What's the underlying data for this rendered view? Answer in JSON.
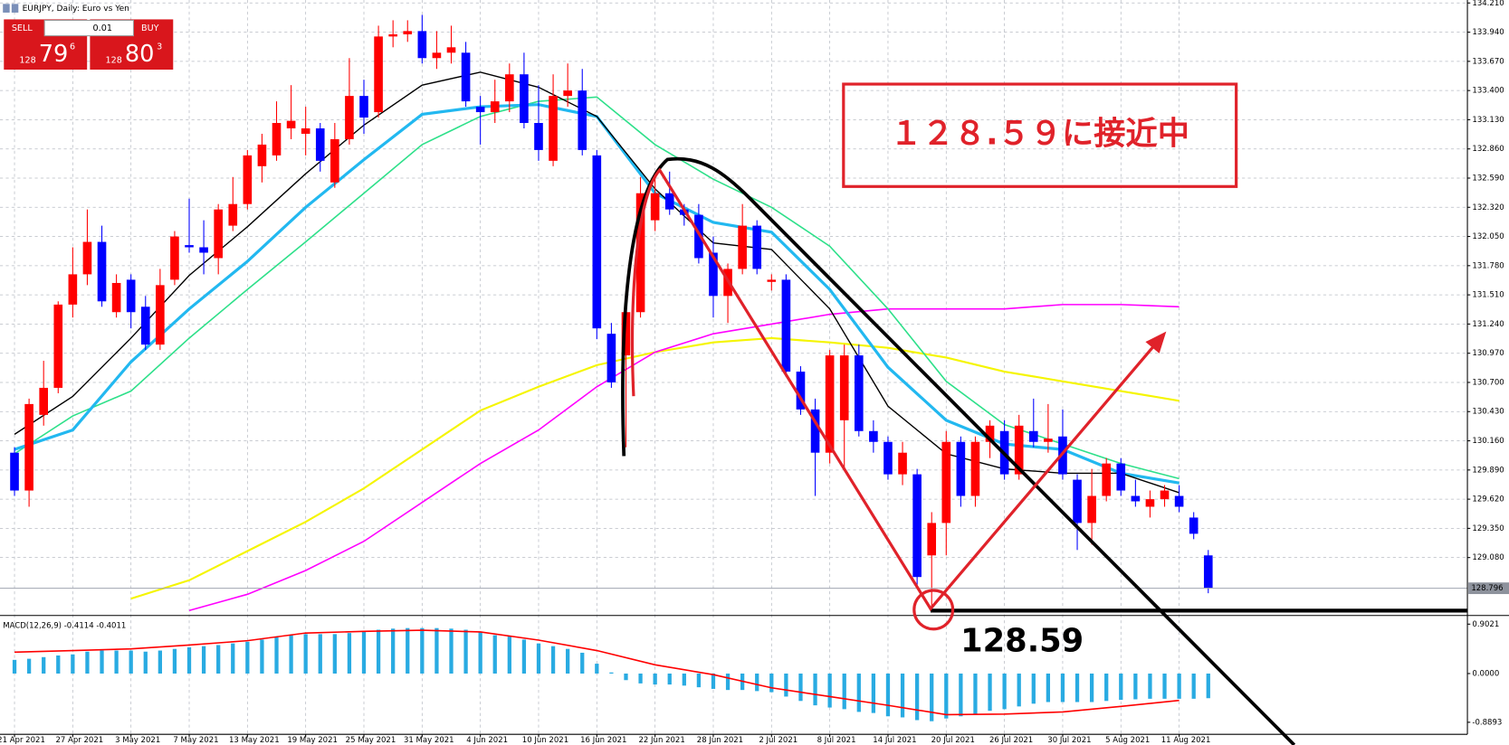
{
  "window_title": "EURJPY, Daily: Euro vs Yen",
  "trade_panel": {
    "sell": "SELL",
    "buy": "BUY",
    "lot": "0.01",
    "sell_big": "128",
    "sell_main": "79",
    "sell_sup": "6",
    "buy_big": "128",
    "buy_main": "80",
    "buy_sup": "3"
  },
  "annotations": {
    "box_text": "１２８.５９に接近中",
    "level_text": "128.59"
  },
  "chart_data": [
    {
      "type": "candlestick",
      "up_color": "#ff0000",
      "down_color": "#0000ff",
      "grid": true,
      "categories": [
        "21 Apr 2021",
        null,
        null,
        null,
        "27 Apr 2021",
        null,
        null,
        null,
        "3 May 2021",
        null,
        null,
        null,
        "7 May 2021",
        null,
        null,
        null,
        "13 May 2021",
        null,
        null,
        null,
        "19 May 2021",
        null,
        null,
        null,
        "25 May 2021",
        null,
        null,
        null,
        "31 May 2021",
        null,
        null,
        null,
        "4 Jun 2021",
        null,
        null,
        null,
        "10 Jun 2021",
        null,
        null,
        null,
        "16 Jun 2021",
        null,
        null,
        null,
        "22 Jun 2021",
        null,
        null,
        null,
        "28 Jun 2021",
        null,
        null,
        null,
        "2 Jul 2021",
        null,
        null,
        null,
        "8 Jul 2021",
        null,
        null,
        null,
        "14 Jul 2021",
        null,
        null,
        null,
        "20 Jul 2021",
        null,
        null,
        null,
        "26 Jul 2021",
        null,
        null,
        null,
        "30 Jul 2021",
        null,
        null,
        null,
        "5 Aug 2021",
        null,
        null,
        null,
        "11 Aug 2021",
        null,
        null
      ],
      "open": [
        130.05,
        129.7,
        130.4,
        130.65,
        131.42,
        131.7,
        132.0,
        131.35,
        131.65,
        131.4,
        131.05,
        131.65,
        131.97,
        131.95,
        131.85,
        132.15,
        132.35,
        132.7,
        132.8,
        133.05,
        133.0,
        133.05,
        132.55,
        132.95,
        133.35,
        133.2,
        133.9,
        133.92,
        133.95,
        133.7,
        133.75,
        133.75,
        133.25,
        133.2,
        133.3,
        133.55,
        133.1,
        132.75,
        133.35,
        133.4,
        132.8,
        131.15,
        130.95,
        131.35,
        132.2,
        132.45,
        132.3,
        132.25,
        131.9,
        131.5,
        131.75,
        132.15,
        131.63,
        131.65,
        130.8,
        130.45,
        130.05,
        130.35,
        130.95,
        130.25,
        130.15,
        129.85,
        129.85,
        129.1,
        129.4,
        130.15,
        129.65,
        130.15,
        130.25,
        129.85,
        130.25,
        130.15,
        130.2,
        129.8,
        129.4,
        129.65,
        129.95,
        129.65,
        129.55,
        129.62,
        129.65,
        129.45,
        129.1
      ],
      "high": [
        130.1,
        130.55,
        130.9,
        131.45,
        131.95,
        132.3,
        132.15,
        131.7,
        131.7,
        131.5,
        131.75,
        132.1,
        132.4,
        132.2,
        132.35,
        132.6,
        132.85,
        133.0,
        133.3,
        133.45,
        133.25,
        133.1,
        133.1,
        133.7,
        133.5,
        134.0,
        134.05,
        134.05,
        134.1,
        133.95,
        134.0,
        133.85,
        133.35,
        133.5,
        133.65,
        133.75,
        133.45,
        133.55,
        133.65,
        133.6,
        132.85,
        131.25,
        131.5,
        132.6,
        132.6,
        132.65,
        132.35,
        132.35,
        132.05,
        131.8,
        132.35,
        132.2,
        131.7,
        131.7,
        130.85,
        130.55,
        131.0,
        131.05,
        131.05,
        130.35,
        130.2,
        130.15,
        129.9,
        129.5,
        130.25,
        130.2,
        130.2,
        130.35,
        130.35,
        130.4,
        130.55,
        130.5,
        130.45,
        129.85,
        129.9,
        130.0,
        130.0,
        129.8,
        129.7,
        129.75,
        129.75,
        129.5,
        129.15
      ],
      "low": [
        129.65,
        129.55,
        130.3,
        130.6,
        131.3,
        131.6,
        131.4,
        131.3,
        131.2,
        131.0,
        131.0,
        131.6,
        131.9,
        131.7,
        131.7,
        132.1,
        132.3,
        132.55,
        132.75,
        132.95,
        132.8,
        132.65,
        132.5,
        132.9,
        133.0,
        133.15,
        133.8,
        133.85,
        133.65,
        133.6,
        133.65,
        133.25,
        132.9,
        133.1,
        133.2,
        133.05,
        132.75,
        132.7,
        133.25,
        132.8,
        131.1,
        130.65,
        130.1,
        131.3,
        132.1,
        132.25,
        132.15,
        131.8,
        131.3,
        131.25,
        131.7,
        131.7,
        131.55,
        130.75,
        130.4,
        129.65,
        129.95,
        129.9,
        130.2,
        130.05,
        129.8,
        129.75,
        128.8,
        128.62,
        129.1,
        129.55,
        129.55,
        130.0,
        129.8,
        129.8,
        130.1,
        130.05,
        129.8,
        129.15,
        129.2,
        129.6,
        129.65,
        129.55,
        129.45,
        129.55,
        129.5,
        129.25,
        128.75
      ],
      "close": [
        129.7,
        130.5,
        130.65,
        131.42,
        131.7,
        132.0,
        131.45,
        131.62,
        131.35,
        131.05,
        131.6,
        132.05,
        131.95,
        131.9,
        132.3,
        132.35,
        132.8,
        132.9,
        133.1,
        133.12,
        133.05,
        132.75,
        132.95,
        133.35,
        133.15,
        133.9,
        133.92,
        133.95,
        133.7,
        133.75,
        133.8,
        133.3,
        133.2,
        133.3,
        133.55,
        133.1,
        132.85,
        133.35,
        133.4,
        132.85,
        131.2,
        130.7,
        131.35,
        132.45,
        132.45,
        132.3,
        132.25,
        131.85,
        131.5,
        131.75,
        132.15,
        131.75,
        131.65,
        130.8,
        130.45,
        130.05,
        130.95,
        130.95,
        130.25,
        130.15,
        129.85,
        130.05,
        128.9,
        129.4,
        130.15,
        129.65,
        130.15,
        130.3,
        129.85,
        130.3,
        130.15,
        130.18,
        129.85,
        129.4,
        129.65,
        129.95,
        129.7,
        129.6,
        129.62,
        129.7,
        129.55,
        129.3,
        128.8
      ],
      "ylim": [
        128.562,
        134.237
      ],
      "yticks": [
        {
          "value": 134.21,
          "label": "134.210"
        },
        {
          "value": 133.94,
          "label": "133.940"
        },
        {
          "value": 133.67,
          "label": "133.670"
        },
        {
          "value": 133.4,
          "label": "133.400"
        },
        {
          "value": 133.13,
          "label": "133.130"
        },
        {
          "value": 132.86,
          "label": "132.860"
        },
        {
          "value": 132.59,
          "label": "132.590"
        },
        {
          "value": 132.32,
          "label": "132.320"
        },
        {
          "value": 132.05,
          "label": "132.050"
        },
        {
          "value": 131.78,
          "label": "131.780"
        },
        {
          "value": 131.51,
          "label": "131.510"
        },
        {
          "value": 131.24,
          "label": "131.240"
        },
        {
          "value": 130.97,
          "label": "130.970"
        },
        {
          "value": 130.7,
          "label": "130.700"
        },
        {
          "value": 130.43,
          "label": "130.430"
        },
        {
          "value": 130.16,
          "label": "130.160"
        },
        {
          "value": 129.89,
          "label": "129.890"
        },
        {
          "value": 129.62,
          "label": "129.620"
        },
        {
          "value": 129.35,
          "label": "129.350"
        },
        {
          "value": 129.08,
          "label": "129.080"
        }
      ],
      "last_price": {
        "value": 128.796,
        "label": "128.796"
      },
      "overlays": [
        {
          "color": "#f5f500",
          "width": 2,
          "x": [
            "3 May 2021",
            "7 May 2021",
            "13 May 2021",
            "19 May 2021",
            "25 May 2021",
            "31 May 2021",
            "4 Jun 2021",
            "10 Jun 2021",
            "16 Jun 2021",
            "22 Jun 2021",
            "28 Jun 2021",
            "2 Jul 2021",
            "8 Jul 2021",
            "14 Jul 2021",
            "20 Jul 2021",
            "26 Jul 2021",
            "30 Jul 2021",
            "5 Aug 2021",
            "11 Aug 2021"
          ],
          "values": [
            128.7,
            128.87,
            129.14,
            129.41,
            129.72,
            130.08,
            130.44,
            130.66,
            130.86,
            130.98,
            131.07,
            131.11,
            131.07,
            131.02,
            130.93,
            130.8,
            130.71,
            130.62,
            130.53
          ]
        },
        {
          "color": "#ff00ff",
          "width": 1.5,
          "x": [
            "7 May 2021",
            "13 May 2021",
            "19 May 2021",
            "25 May 2021",
            "31 May 2021",
            "4 Jun 2021",
            "10 Jun 2021",
            "16 Jun 2021",
            "22 Jun 2021",
            "28 Jun 2021",
            "2 Jul 2021",
            "8 Jul 2021",
            "14 Jul 2021",
            "20 Jul 2021",
            "26 Jul 2021",
            "30 Jul 2021",
            "5 Aug 2021",
            "11 Aug 2021"
          ],
          "values": [
            128.59,
            128.74,
            128.96,
            129.23,
            129.59,
            129.95,
            130.26,
            130.66,
            130.98,
            131.15,
            131.24,
            131.33,
            131.38,
            131.38,
            131.38,
            131.42,
            131.42,
            131.4
          ]
        },
        {
          "color": "#2ee08a",
          "width": 1.5,
          "x": [
            "21 Apr 2021",
            "27 Apr 2021",
            "3 May 2021",
            "7 May 2021",
            "13 May 2021",
            "19 May 2021",
            "25 May 2021",
            "31 May 2021",
            "4 Jun 2021",
            "10 Jun 2021",
            "16 Jun 2021",
            "22 Jun 2021",
            "28 Jun 2021",
            "2 Jul 2021",
            "8 Jul 2021",
            "14 Jul 2021",
            "20 Jul 2021",
            "26 Jul 2021",
            "30 Jul 2021",
            "5 Aug 2021",
            "11 Aug 2021"
          ],
          "values": [
            130.04,
            130.39,
            130.62,
            131.11,
            131.56,
            132.0,
            132.45,
            132.9,
            133.16,
            133.3,
            133.34,
            132.9,
            132.58,
            132.32,
            131.96,
            131.38,
            130.71,
            130.31,
            130.13,
            129.95,
            129.81
          ]
        },
        {
          "color": "#22b8f0",
          "width": 3,
          "x": [
            "21 Apr 2021",
            "27 Apr 2021",
            "3 May 2021",
            "7 May 2021",
            "13 May 2021",
            "19 May 2021",
            "25 May 2021",
            "31 May 2021",
            "4 Jun 2021",
            "10 Jun 2021",
            "16 Jun 2021",
            "22 Jun 2021",
            "28 Jun 2021",
            "2 Jul 2021",
            "8 Jul 2021",
            "14 Jul 2021",
            "20 Jul 2021",
            "26 Jul 2021",
            "30 Jul 2021",
            "5 Aug 2021",
            "11 Aug 2021"
          ],
          "values": [
            130.08,
            130.26,
            130.89,
            131.38,
            131.82,
            132.32,
            132.76,
            133.18,
            133.25,
            133.27,
            133.16,
            132.45,
            132.18,
            132.09,
            131.56,
            130.84,
            130.35,
            130.13,
            130.08,
            129.86,
            129.77
          ]
        },
        {
          "color": "#000000",
          "width": 1.3,
          "x": [
            "21 Apr 2021",
            "27 Apr 2021",
            "3 May 2021",
            "7 May 2021",
            "13 May 2021",
            "19 May 2021",
            "25 May 2021",
            "31 May 2021",
            "4 Jun 2021",
            "10 Jun 2021",
            "16 Jun 2021",
            "22 Jun 2021",
            "28 Jun 2021",
            "2 Jul 2021",
            "8 Jul 2021",
            "14 Jul 2021",
            "20 Jul 2021",
            "26 Jul 2021",
            "30 Jul 2021",
            "5 Aug 2021",
            "11 Aug 2021"
          ],
          "values": [
            130.22,
            130.57,
            131.11,
            131.69,
            132.14,
            132.63,
            133.08,
            133.45,
            133.57,
            133.43,
            133.16,
            132.49,
            131.99,
            131.93,
            131.38,
            130.48,
            130.04,
            129.9,
            129.86,
            129.86,
            129.68
          ]
        }
      ]
    },
    {
      "type": "macd",
      "name": "MACD(12,26,9)",
      "main": -0.4114,
      "signal_value": -0.4011,
      "bar_color": "#29abe2",
      "signal_color": "#ff0000",
      "values": [
        0.25,
        0.27,
        0.3,
        0.33,
        0.35,
        0.4,
        0.42,
        0.42,
        0.42,
        0.4,
        0.42,
        0.45,
        0.48,
        0.5,
        0.52,
        0.55,
        0.58,
        0.62,
        0.66,
        0.7,
        0.72,
        0.72,
        0.72,
        0.74,
        0.76,
        0.8,
        0.82,
        0.83,
        0.83,
        0.83,
        0.82,
        0.8,
        0.75,
        0.7,
        0.68,
        0.62,
        0.55,
        0.5,
        0.45,
        0.38,
        0.18,
        0.02,
        -0.12,
        -0.18,
        -0.2,
        -0.2,
        -0.22,
        -0.25,
        -0.28,
        -0.3,
        -0.3,
        -0.32,
        -0.34,
        -0.42,
        -0.5,
        -0.58,
        -0.62,
        -0.65,
        -0.7,
        -0.72,
        -0.78,
        -0.8,
        -0.85,
        -0.87,
        -0.82,
        -0.78,
        -0.74,
        -0.68,
        -0.65,
        -0.6,
        -0.55,
        -0.52,
        -0.52,
        -0.52,
        -0.52,
        -0.5,
        -0.48,
        -0.47,
        -0.46,
        -0.46,
        -0.46,
        -0.46,
        -0.45
      ],
      "signal": {
        "x": [
          "21 Apr 2021",
          "27 Apr 2021",
          "3 May 2021",
          "7 May 2021",
          "13 May 2021",
          "19 May 2021",
          "25 May 2021",
          "31 May 2021",
          "4 Jun 2021",
          "10 Jun 2021",
          "16 Jun 2021",
          "22 Jun 2021",
          "28 Jun 2021",
          "2 Jul 2021",
          "8 Jul 2021",
          "14 Jul 2021",
          "20 Jul 2021",
          "26 Jul 2021",
          "30 Jul 2021",
          "5 Aug 2021",
          "11 Aug 2021"
        ],
        "values": [
          0.39,
          0.42,
          0.45,
          0.52,
          0.6,
          0.74,
          0.77,
          0.79,
          0.76,
          0.61,
          0.42,
          0.16,
          -0.02,
          -0.26,
          -0.42,
          -0.58,
          -0.75,
          -0.74,
          -0.7,
          -0.6,
          -0.49
        ]
      },
      "ylim": [
        -1.109,
        1.007
      ],
      "yticks": [
        {
          "value": 0.9021,
          "label": "0.9021"
        },
        {
          "value": 0,
          "label": "0.0000"
        },
        {
          "value": -0.8893,
          "label": "-0.8893"
        }
      ]
    }
  ]
}
